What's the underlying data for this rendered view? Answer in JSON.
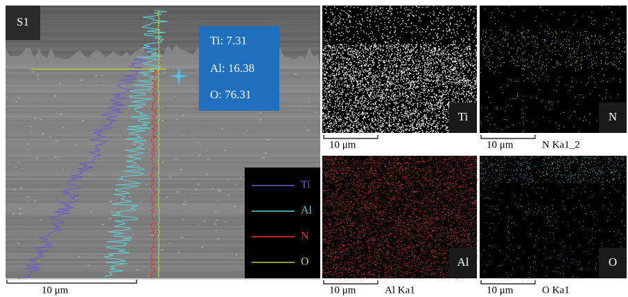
{
  "sem": {
    "label": "S1",
    "scale_bar": "10 μm",
    "composition": [
      "Ti: 7.31",
      "Al: 16.38",
      "O: 76.31"
    ],
    "legend": [
      {
        "name": "Ti",
        "color": "#6a5acd"
      },
      {
        "name": "Al",
        "color": "#5fd3d8"
      },
      {
        "name": "N",
        "color": "#e8332a"
      },
      {
        "name": "O",
        "color": "#b5d334"
      }
    ]
  },
  "maps": [
    {
      "element": "Ti",
      "scale_bar": "10 μm",
      "color": "#ffffff"
    },
    {
      "element": "N",
      "scale_bar": "10 μm",
      "caption": "N Ka1_2",
      "color": "#d8d84a"
    },
    {
      "element": "Al",
      "scale_bar": "10 μm",
      "caption": "Al Ka1",
      "color": "#e0302c"
    },
    {
      "element": "O",
      "scale_bar": "10 μm",
      "caption": "O Ka1",
      "color": "#3fb8b8"
    }
  ]
}
